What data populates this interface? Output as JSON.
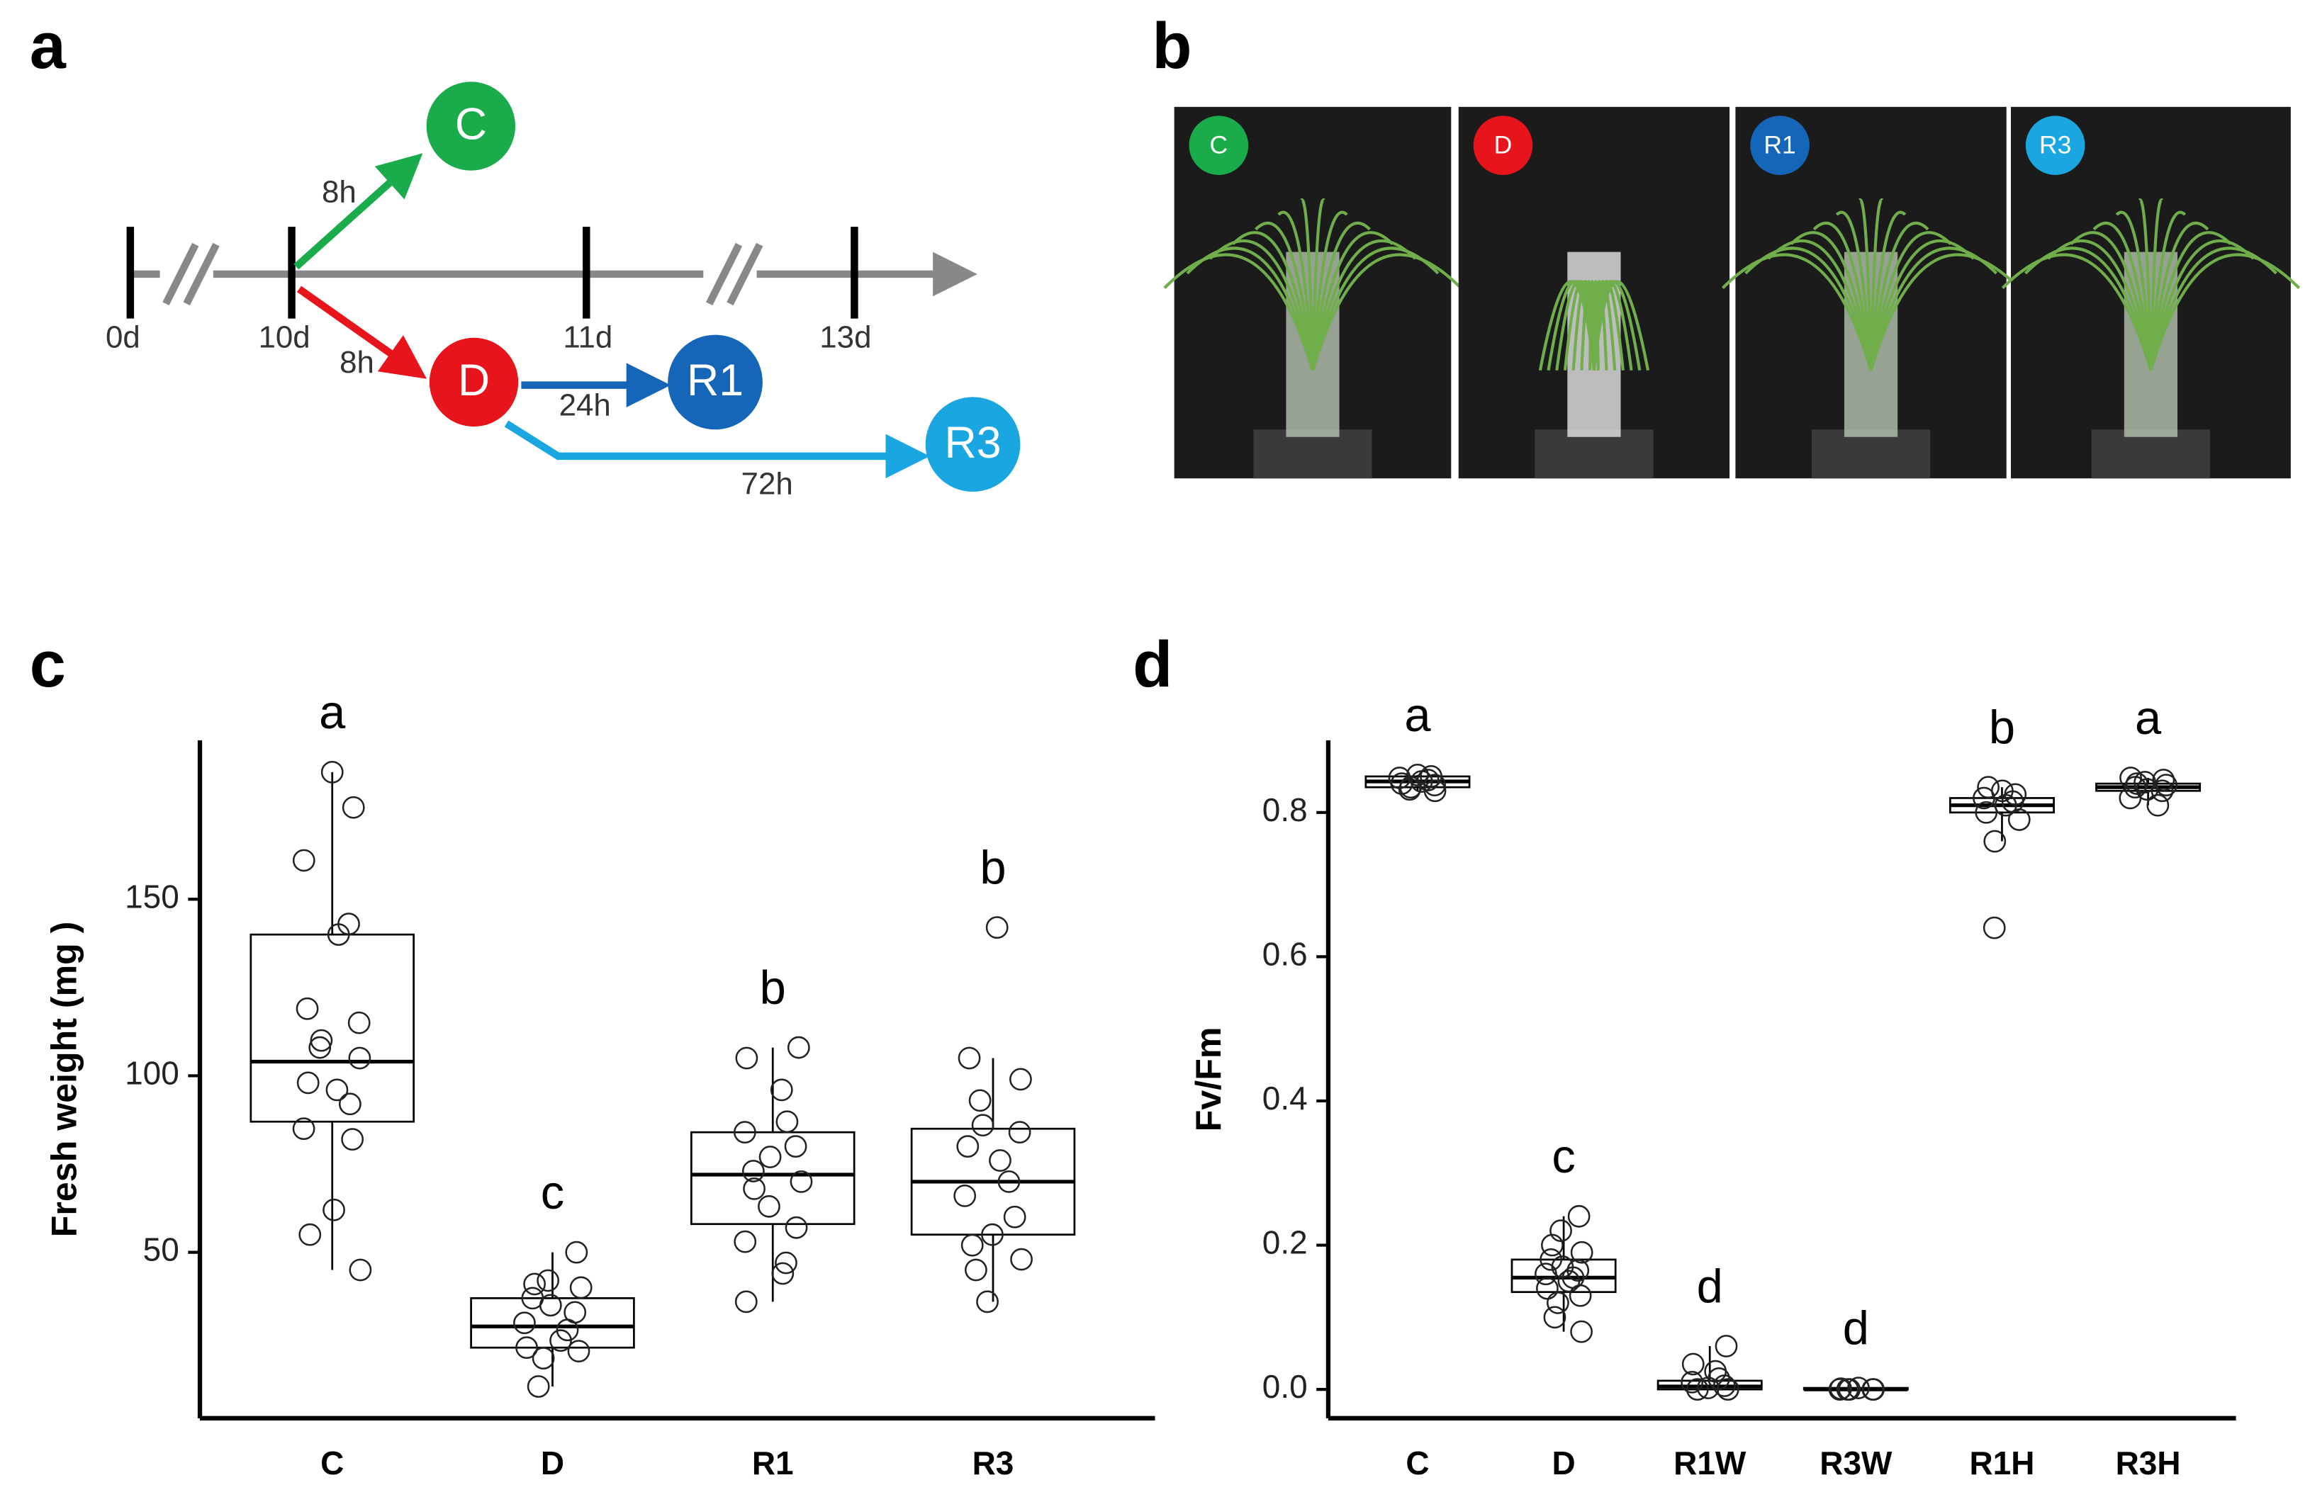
{
  "panels": {
    "a": "a",
    "b": "b",
    "c": "c",
    "d": "d"
  },
  "diagram": {
    "days": [
      "0d",
      "10d",
      "11d",
      "13d"
    ],
    "durations": {
      "c": "8h",
      "d": "8h",
      "r1": "24h",
      "r3": "72h"
    },
    "nodes": [
      "C",
      "D",
      "R1",
      "R3"
    ],
    "colors": [
      "#1aab4b",
      "#e8141b",
      "#1565b8",
      "#1aa6e0"
    ]
  },
  "photos": [
    "C",
    "D",
    "R1",
    "R3"
  ],
  "chart_data": [
    {
      "type": "box",
      "y_label": "Fresh weight (mg )",
      "categories": [
        "C",
        "D",
        "R1",
        "R3"
      ],
      "letters": [
        "a",
        "c",
        "b",
        "b"
      ],
      "ylim": [
        3,
        195
      ],
      "yticks": [
        50,
        100,
        150
      ],
      "boxes": [
        {
          "whisker_low": 45,
          "q1": 87,
          "median": 104,
          "q3": 140,
          "whisker_high": 186,
          "points": [
            186,
            176,
            161,
            143,
            140,
            119,
            115,
            110,
            108,
            105,
            98,
            96,
            92,
            85,
            82,
            62,
            55,
            45
          ]
        },
        {
          "whisker_low": 12,
          "q1": 23,
          "median": 29,
          "q3": 37,
          "whisker_high": 50,
          "points": [
            50,
            42,
            41,
            40,
            37,
            35,
            33,
            30,
            28,
            25,
            23,
            22,
            20,
            12
          ]
        },
        {
          "whisker_low": 36,
          "q1": 58,
          "median": 72,
          "q3": 84,
          "whisker_high": 108,
          "points": [
            108,
            105,
            96,
            87,
            84,
            80,
            77,
            73,
            70,
            68,
            63,
            57,
            53,
            47,
            44,
            36
          ]
        },
        {
          "whisker_low": 36,
          "q1": 55,
          "median": 70,
          "q3": 85,
          "whisker_high": 105,
          "points": [
            142,
            105,
            99,
            93,
            86,
            84,
            80,
            76,
            70,
            66,
            60,
            55,
            52,
            48,
            45,
            36
          ]
        }
      ]
    },
    {
      "type": "box",
      "y_label": "Fv/Fm",
      "categories": [
        "C",
        "D",
        "R1W",
        "R3W",
        "R1H",
        "R3H"
      ],
      "letters": [
        "a",
        "c",
        "d",
        "d",
        "b",
        "a"
      ],
      "ylim": [
        -0.04,
        0.9
      ],
      "yticks": [
        {
          "value": 0,
          "label": "0.0"
        },
        {
          "value": 0.2,
          "label": "0.2"
        },
        {
          "value": 0.4,
          "label": "0.4"
        },
        {
          "value": 0.6,
          "label": "0.6"
        },
        {
          "value": 0.8,
          "label": "0.8"
        }
      ],
      "boxes": [
        {
          "whisker_low": 0.83,
          "q1": 0.835,
          "median": 0.843,
          "q3": 0.85,
          "whisker_high": 0.852,
          "points": [
            0.852,
            0.85,
            0.848,
            0.845,
            0.843,
            0.84,
            0.838,
            0.835,
            0.832,
            0.83
          ]
        },
        {
          "whisker_low": 0.08,
          "q1": 0.135,
          "median": 0.155,
          "q3": 0.18,
          "whisker_high": 0.24,
          "points": [
            0.24,
            0.22,
            0.2,
            0.19,
            0.18,
            0.17,
            0.165,
            0.16,
            0.155,
            0.15,
            0.14,
            0.13,
            0.12,
            0.1,
            0.08
          ]
        },
        {
          "whisker_low": 0,
          "q1": 0,
          "median": 0.004,
          "q3": 0.012,
          "whisker_high": 0.06,
          "points": [
            0.06,
            0.035,
            0.025,
            0.015,
            0.01,
            0.005,
            0.002,
            0,
            0
          ]
        },
        {
          "whisker_low": 0,
          "q1": 0,
          "median": 0,
          "q3": 0.002,
          "whisker_high": 0.002,
          "points": [
            0.002,
            0.001,
            0,
            0,
            0,
            0,
            0
          ]
        },
        {
          "whisker_low": 0.76,
          "q1": 0.8,
          "median": 0.81,
          "q3": 0.82,
          "whisker_high": 0.835,
          "points": [
            0.835,
            0.83,
            0.825,
            0.82,
            0.815,
            0.81,
            0.8,
            0.79,
            0.76,
            0.64
          ]
        },
        {
          "whisker_low": 0.81,
          "q1": 0.83,
          "median": 0.835,
          "q3": 0.84,
          "whisker_high": 0.848,
          "points": [
            0.848,
            0.845,
            0.842,
            0.84,
            0.838,
            0.835,
            0.832,
            0.83,
            0.82,
            0.81
          ]
        }
      ]
    }
  ]
}
